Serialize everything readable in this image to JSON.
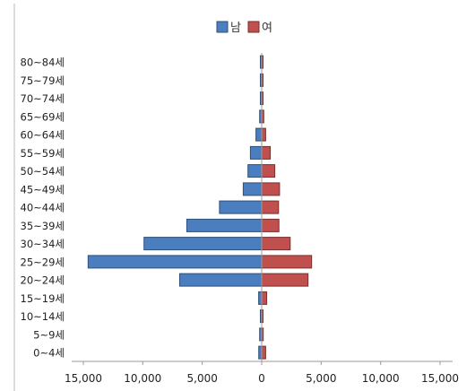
{
  "chart_data": {
    "type": "bar",
    "orientation": "horizontal",
    "layout": "population-pyramid",
    "categories": [
      "80~84세",
      "75~79세",
      "70~74세",
      "65~69세",
      "60~64세",
      "55~59세",
      "50~54세",
      "45~49세",
      "40~44세",
      "35~39세",
      "30~34세",
      "25~29세",
      "20~24세",
      "15~19세",
      "10~14세",
      "5~9세",
      "0~4세"
    ],
    "series": [
      {
        "name": "남",
        "color": "#4a7ebf",
        "values": [
          80,
          80,
          80,
          170,
          480,
          950,
          1150,
          1550,
          3550,
          6300,
          9900,
          14600,
          6900,
          260,
          70,
          170,
          250
        ]
      },
      {
        "name": "여",
        "color": "#c0504d",
        "values": [
          80,
          80,
          80,
          170,
          330,
          720,
          1100,
          1500,
          1420,
          1450,
          2400,
          4200,
          3900,
          420,
          60,
          130,
          330
        ]
      }
    ],
    "x_ticks": [
      "15,000",
      "10,000",
      "5,000",
      "0",
      "5,000",
      "10,000",
      "15,000"
    ],
    "xlim": [
      -15000,
      15000
    ],
    "legend_position": "top",
    "grid": false
  }
}
